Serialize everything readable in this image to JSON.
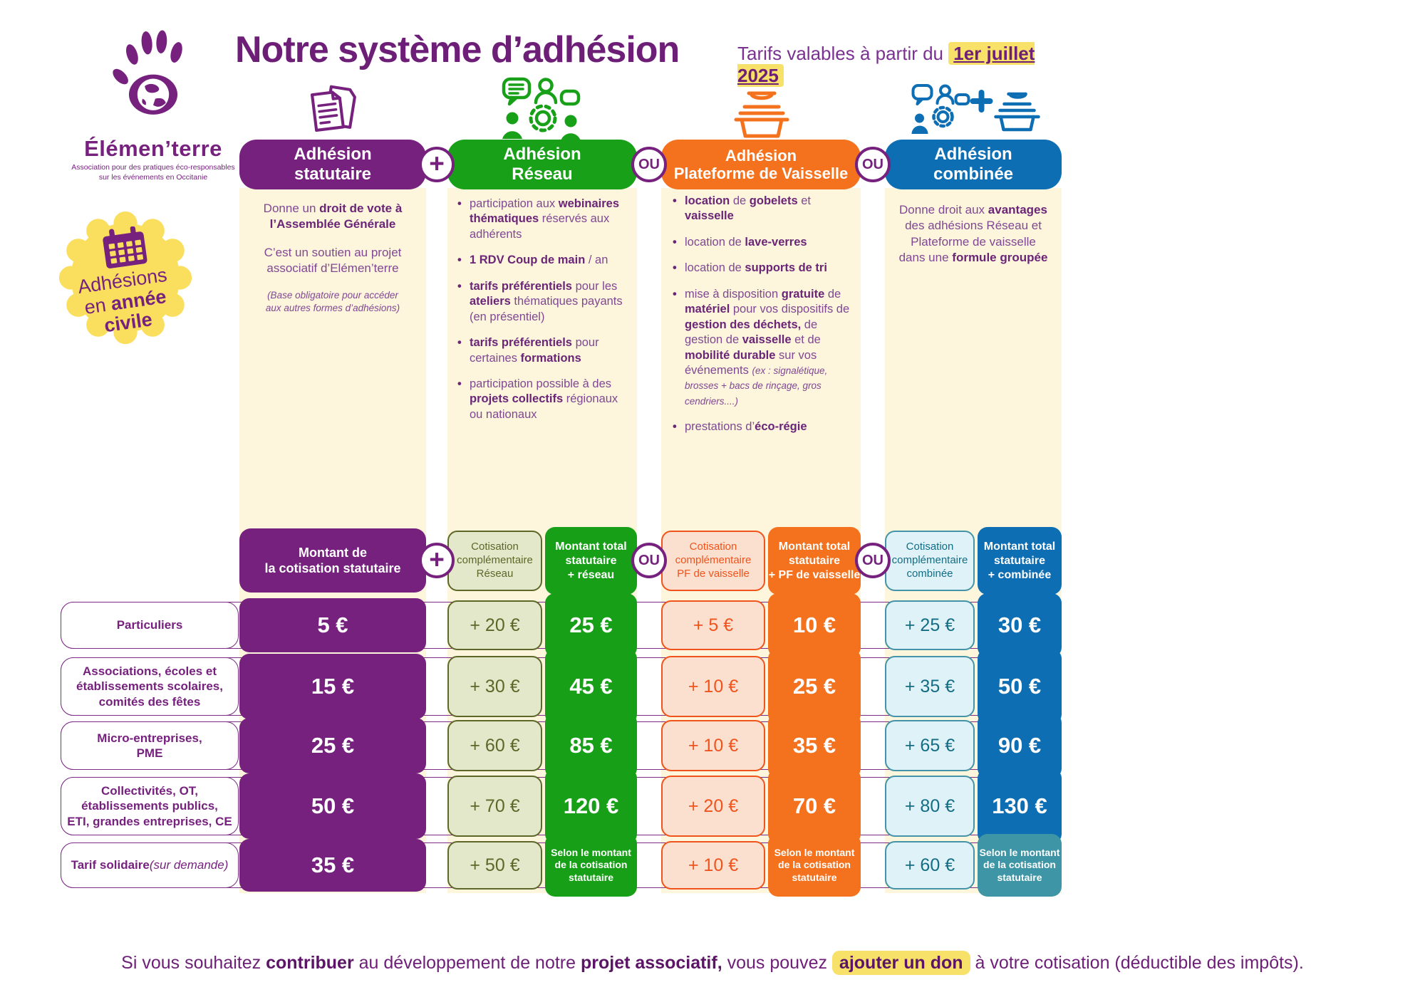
{
  "colors": {
    "purple": "#76217e",
    "green": "#18a018",
    "orange": "#f4711d",
    "blue": "#0e6eb4",
    "teal": "#3e95a5",
    "olive": "#5d6728",
    "cream": "#fdf5dc",
    "yellow_highlight": "#f8e169"
  },
  "logo": {
    "name": "Élémen’terre",
    "subtitle_html": "Association pour des pratiques éco-responsables<br>sur les événements en Occitanie"
  },
  "header": {
    "title": "Notre système d’adhésion",
    "tariff_html": "Tarifs valables à partir du <span class='hl-date'>1er juillet 2025</span>"
  },
  "badge": {
    "text_html": "Adhésions<br>en <b>année</b><br><b>civile</b>"
  },
  "connectors": {
    "plus": "+",
    "or": "OU"
  },
  "plans": [
    {
      "title_html": "Adhésion<br>statutaire",
      "icon": "document-icon",
      "description_html": "<p>Donne un <b>droit de vote à<br>l’Assemblée Générale</b></p><p>C’est un soutien au projet<br>associatif d’Elémen’terre</p><p class='note'>(Base obligatoire pour accéder<br>aux autres formes d’adhésions)</p>"
    },
    {
      "title_html": "Adhésion<br>Réseau",
      "icon": "network-icon",
      "bullets": [
        "participation aux <b>webinaires thématiques</b> réservés aux adhérents",
        "<b>1 RDV Coup de main</b> / an",
        "<b>tarifs préférentiels</b> pour les <b>ateliers</b> thématiques payants (en présentiel)",
        "<b>tarifs préférentiels</b> pour certaines <b>formations</b>",
        "participation possible à des <b>projets collectifs</b> régionaux ou nationaux"
      ]
    },
    {
      "title_html": "Adhésion<br>Plateforme de Vaisselle",
      "icon": "dishes-icon",
      "bullets": [
        "<b>location</b> de <b>gobelets</b> et <b>vaisselle</b>",
        "location de <b>lave-verres</b>",
        "location de <b>supports de tri</b>",
        "mise à disposition <b>gratuite</b> de <b>matériel</b> pour vos dispositifs de <b>gestion des déchets,</b> de gestion de <b>vaisselle</b> et de <b>mobilité durable</b> sur vos événements <span class='note'>(ex : signalétique, brosses + bacs de rinçage, gros cendriers....)</span>",
        "prestations d’<b>éco-régie</b>"
      ]
    },
    {
      "title_html": "Adhésion<br>combinée",
      "icon": "combined-icon",
      "description_html": "Donne droit aux <b>avantages</b><br>des adhésions Réseau et<br>Plateforme de vaisselle<br>dans une <b>formule groupée</b>"
    }
  ],
  "subheaders": {
    "statutaire_html": "Montant de<br>la cotisation statutaire",
    "reseau_comp_html": "Cotisation<br>complémentaire<br>Réseau",
    "reseau_total_html": "Montant total<br>statutaire<br>+ réseau",
    "vaisselle_comp_html": "Cotisation<br>complémentaire<br>PF de vaisselle",
    "vaisselle_total_html": "Montant total<br>statutaire<br>+ PF de vaisselle",
    "combinee_comp_html": "Cotisation<br>complémentaire<br>combinée",
    "combinee_total_html": "Montant total<br>statutaire<br>+ combinée"
  },
  "table": {
    "selon_html": "Selon le montant<br>de la cotisation<br>statutaire",
    "rows": [
      {
        "label_html": "Particuliers",
        "statutaire": "5 €",
        "reseau_comp": "+ 20 €",
        "reseau_total": "25 €",
        "vaisselle_comp": "+ 5 €",
        "vaisselle_total": "10 €",
        "combinee_comp": "+ 25 €",
        "combinee_total": "30 €"
      },
      {
        "label_html": "Associations, écoles et<br>établissements scolaires,<br>comités des fêtes",
        "statutaire": "15 €",
        "reseau_comp": "+ 30 €",
        "reseau_total": "45 €",
        "vaisselle_comp": "+ 10 €",
        "vaisselle_total": "25 €",
        "combinee_comp": "+ 35 €",
        "combinee_total": "50 €"
      },
      {
        "label_html": "Micro-entreprises,<br>PME",
        "statutaire": "25 €",
        "reseau_comp": "+ 60 €",
        "reseau_total": "85 €",
        "vaisselle_comp": "+ 10 €",
        "vaisselle_total": "35 €",
        "combinee_comp": "+ 65 €",
        "combinee_total": "90 €"
      },
      {
        "label_html": "Collectivités, OT,<br>établissements publics,<br>ETI, grandes entreprises, CE",
        "statutaire": "50 €",
        "reseau_comp": "+ 70 €",
        "reseau_total": "120 €",
        "vaisselle_comp": "+ 20 €",
        "vaisselle_total": "70 €",
        "combinee_comp": "+ 80 €",
        "combinee_total": "130 €"
      },
      {
        "label_html": "<b>Tarif solidaire</b><br><span class='it'>(sur demande)</span>",
        "statutaire": "35 €",
        "reseau_comp": "+ 50 €",
        "vaisselle_comp": "+ 10 €",
        "combinee_comp": "+ 60 €"
      }
    ]
  },
  "footer": {
    "note_html": "Si vous souhaitez <b>contribuer</b> au développement de notre <b>projet associatif,</b> vous pouvez <span class='hl'><b>ajouter un don</b></span> à votre cotisation (déductible des impôts)."
  }
}
